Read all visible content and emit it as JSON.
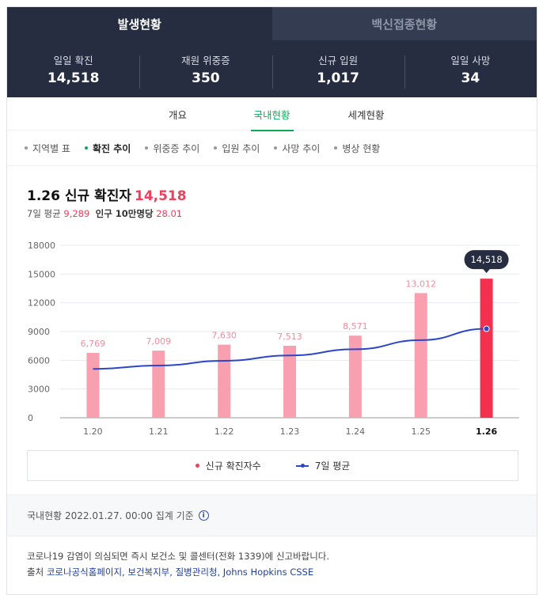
{
  "top_tabs": [
    "발생현황",
    "백신접종현황"
  ],
  "stats": [
    {
      "label": "일일 확진",
      "value": "14,518"
    },
    {
      "label": "재원 위중증",
      "value": "350"
    },
    {
      "label": "신규 입원",
      "value": "1,017"
    },
    {
      "label": "일일 사망",
      "value": "34"
    }
  ],
  "sub_tabs": [
    "개요",
    "국내현황",
    "세계현황"
  ],
  "filters": [
    "지역별 표",
    "확진 추이",
    "위중증 추이",
    "입원 추이",
    "사망 추이",
    "병상 현황"
  ],
  "heading": {
    "label": "1.26 신규 확진자",
    "value": "14,518"
  },
  "subhead": {
    "avg_label": "7일 평균",
    "avg_value": "9,289",
    "pop_label": "인구 10만명당",
    "pop_value": "28.01"
  },
  "chart_data": {
    "type": "bar",
    "categories": [
      "1.20",
      "1.21",
      "1.22",
      "1.23",
      "1.24",
      "1.25",
      "1.26"
    ],
    "series": [
      {
        "name": "신규 확진자수",
        "type": "bar",
        "values": [
          6769,
          7009,
          7630,
          7513,
          8571,
          13012,
          14518
        ],
        "labels": [
          "6,769",
          "7,009",
          "7,630",
          "7,513",
          "8,571",
          "13,012",
          "14,518"
        ]
      },
      {
        "name": "7일 평균",
        "type": "line",
        "values": [
          5100,
          5450,
          5950,
          6500,
          7150,
          8100,
          9289
        ]
      }
    ],
    "yticks": [
      0,
      3000,
      6000,
      9000,
      12000,
      15000,
      18000
    ],
    "ylim": [
      0,
      18000
    ],
    "highlight_index": 6,
    "colors": {
      "bar": "#f9a0b0",
      "bar_highlight": "#f5304f",
      "line": "#2c46c8",
      "label": "#f38c9c",
      "tooltip_bg": "#262d40"
    }
  },
  "legend": {
    "bar": "신규 확진자수",
    "line": "7일 평균"
  },
  "basis": {
    "text": "국내현황 2022.01.27. 00:00 집계 기준",
    "icon": "i"
  },
  "notice": {
    "line1": "코로나19 감염이 의심되면 즉시 보건소 및 콜센터(전화 1339)에 신고바랍니다.",
    "source_label": "출처",
    "sources": [
      "코로나공식홈페이지,",
      "보건복지부,",
      "질병관리청,",
      "Johns Hopkins CSSE"
    ]
  }
}
